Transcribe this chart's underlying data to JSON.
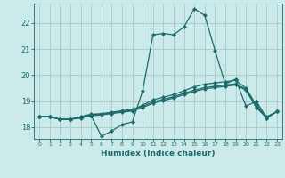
{
  "xlabel": "Humidex (Indice chaleur)",
  "bg_color": "#cceaea",
  "grid_color": "#aacfcf",
  "line_color": "#1a6b6b",
  "xlim": [
    -0.5,
    23.5
  ],
  "ylim": [
    17.55,
    22.75
  ],
  "yticks": [
    18,
    19,
    20,
    21,
    22
  ],
  "xticks": [
    0,
    1,
    2,
    3,
    4,
    5,
    6,
    7,
    8,
    9,
    10,
    11,
    12,
    13,
    14,
    15,
    16,
    17,
    18,
    19,
    20,
    21,
    22,
    23
  ],
  "lines": [
    [
      18.4,
      18.4,
      18.3,
      18.3,
      18.35,
      18.45,
      17.65,
      17.85,
      18.1,
      18.2,
      19.4,
      21.55,
      21.6,
      21.55,
      21.85,
      22.55,
      22.3,
      20.95,
      19.65,
      19.85,
      18.8,
      19.0,
      18.35,
      18.6
    ],
    [
      18.4,
      18.4,
      18.3,
      18.3,
      18.4,
      18.5,
      18.5,
      18.55,
      18.6,
      18.65,
      18.85,
      19.05,
      19.15,
      19.25,
      19.4,
      19.55,
      19.65,
      19.7,
      19.75,
      19.8,
      19.5,
      18.85,
      18.4,
      18.6
    ],
    [
      18.4,
      18.4,
      18.3,
      18.3,
      18.38,
      18.47,
      18.52,
      18.57,
      18.63,
      18.68,
      18.8,
      18.97,
      19.07,
      19.17,
      19.3,
      19.42,
      19.52,
      19.57,
      19.62,
      19.67,
      19.45,
      18.78,
      18.37,
      18.6
    ],
    [
      18.4,
      18.4,
      18.3,
      18.3,
      18.36,
      18.43,
      18.47,
      18.52,
      18.57,
      18.62,
      18.75,
      18.92,
      19.02,
      19.12,
      19.25,
      19.37,
      19.47,
      19.52,
      19.57,
      19.62,
      19.42,
      18.75,
      18.35,
      18.6
    ]
  ]
}
